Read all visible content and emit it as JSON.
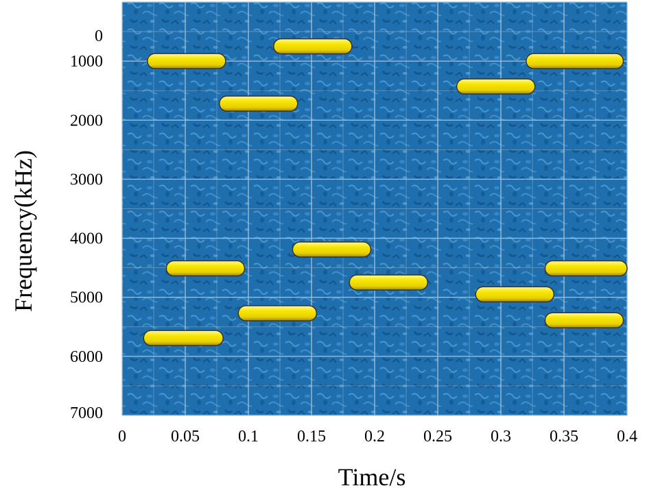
{
  "chart_data": {
    "type": "scatter",
    "subtype": "time-frequency hopping pattern",
    "title": "",
    "xlabel": "Time/s",
    "ylabel": "Frequency(kHz)",
    "xlim": [
      0,
      0.4
    ],
    "ylim": [
      0,
      7000
    ],
    "y_axis_inverted": true,
    "x_ticks": [
      "0",
      "0.05",
      "0.1",
      "0.15",
      "0.2",
      "0.25",
      "0.3",
      "0.35",
      "0.4"
    ],
    "y_ticks": [
      "0",
      "1000",
      "2000",
      "3000",
      "4000",
      "5000",
      "6000",
      "7000"
    ],
    "grid": true,
    "background": "blue textured",
    "colors": {
      "plot_background": "#1f6fae",
      "bar_fill": "#f2e100",
      "bar_highlight": "#fff7a0",
      "grid": "#a9bfd2"
    },
    "segments": [
      {
        "t_start": 0.02,
        "t_end": 0.082,
        "freq": 1000
      },
      {
        "t_start": 0.12,
        "t_end": 0.182,
        "freq": 750
      },
      {
        "t_start": 0.32,
        "t_end": 0.397,
        "freq": 1000
      },
      {
        "t_start": 0.077,
        "t_end": 0.139,
        "freq": 1720
      },
      {
        "t_start": 0.265,
        "t_end": 0.327,
        "freq": 1430
      },
      {
        "t_start": 0.135,
        "t_end": 0.197,
        "freq": 4190
      },
      {
        "t_start": 0.035,
        "t_end": 0.097,
        "freq": 4510
      },
      {
        "t_start": 0.335,
        "t_end": 0.4,
        "freq": 4510
      },
      {
        "t_start": 0.18,
        "t_end": 0.242,
        "freq": 4750
      },
      {
        "t_start": 0.28,
        "t_end": 0.342,
        "freq": 4950
      },
      {
        "t_start": 0.092,
        "t_end": 0.154,
        "freq": 5270
      },
      {
        "t_start": 0.335,
        "t_end": 0.397,
        "freq": 5390
      },
      {
        "t_start": 0.017,
        "t_end": 0.08,
        "freq": 5690
      }
    ]
  }
}
